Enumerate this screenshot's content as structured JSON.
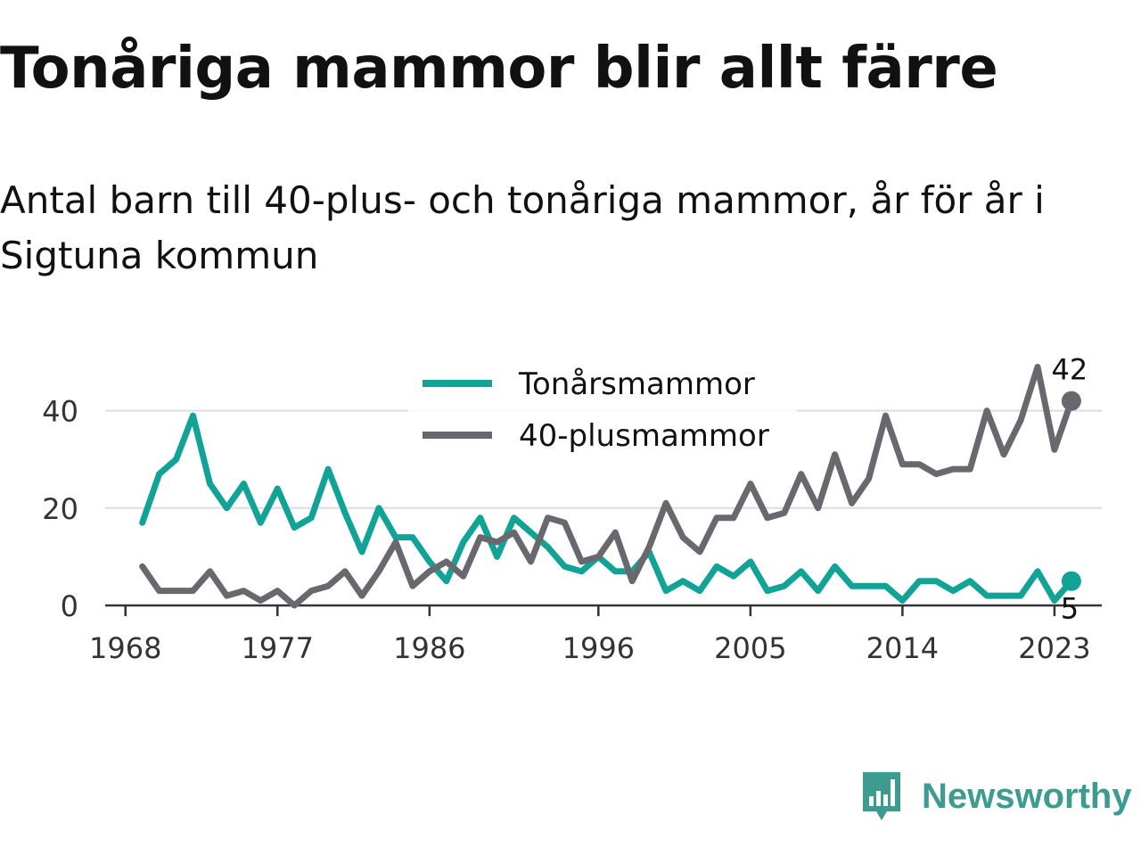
{
  "title": "Tonåriga mammor blir allt färre",
  "subtitle": "Antal barn till 40-plus- och tonåriga mammor, år för år i Sigtuna kommun",
  "brand": {
    "name": "Newsworthy",
    "color": "#3d9c8f",
    "icon": "bar-chart-speech-bubble-icon"
  },
  "chart_data": {
    "type": "line",
    "x_start": 1969,
    "x": [
      1969,
      1970,
      1971,
      1972,
      1973,
      1974,
      1975,
      1976,
      1977,
      1978,
      1979,
      1980,
      1981,
      1982,
      1983,
      1984,
      1985,
      1986,
      1987,
      1988,
      1989,
      1990,
      1991,
      1992,
      1993,
      1994,
      1995,
      1996,
      1997,
      1998,
      1999,
      2000,
      2001,
      2002,
      2003,
      2004,
      2005,
      2006,
      2007,
      2008,
      2009,
      2010,
      2011,
      2012,
      2013,
      2014,
      2015,
      2016,
      2017,
      2018,
      2019,
      2020,
      2021,
      2022,
      2023,
      2024
    ],
    "xticks": [
      1968,
      1977,
      1986,
      1996,
      2005,
      2014,
      2023
    ],
    "xlim": [
      1966.8,
      2025.8
    ],
    "yticks": [
      0,
      20,
      40
    ],
    "ylim": [
      0,
      50
    ],
    "grid": true,
    "legend_position": "top-center",
    "series": [
      {
        "name": "Tonårsmammor",
        "color": "#12a397",
        "values": [
          17,
          27,
          30,
          39,
          25,
          20,
          25,
          17,
          24,
          16,
          18,
          28,
          19,
          11,
          20,
          14,
          14,
          9,
          5,
          13,
          18,
          10,
          18,
          15,
          12,
          8,
          7,
          10,
          7,
          7,
          11,
          3,
          5,
          3,
          8,
          6,
          9,
          3,
          4,
          7,
          3,
          8,
          4,
          4,
          4,
          1,
          5,
          5,
          3,
          5,
          2,
          2,
          2,
          7,
          1,
          5
        ],
        "end_label": "5"
      },
      {
        "name": "40-plusmammor",
        "color": "#6a686e",
        "values": [
          8,
          3,
          3,
          3,
          7,
          2,
          3,
          1,
          3,
          0,
          3,
          4,
          7,
          2,
          7,
          13,
          4,
          7,
          9,
          6,
          14,
          13,
          15,
          9,
          18,
          17,
          9,
          10,
          15,
          5,
          12,
          21,
          14,
          11,
          18,
          18,
          25,
          18,
          19,
          27,
          20,
          31,
          21,
          26,
          39,
          29,
          29,
          27,
          28,
          28,
          40,
          31,
          38,
          49,
          32,
          42
        ],
        "end_label": "42"
      }
    ]
  }
}
